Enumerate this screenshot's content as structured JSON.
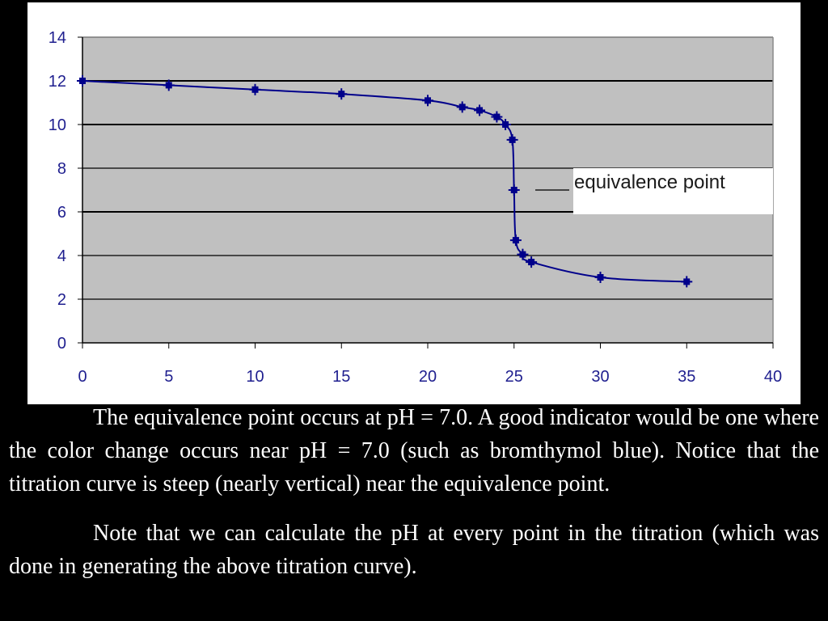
{
  "chart_data": {
    "type": "line",
    "title": "",
    "xlabel": "",
    "ylabel": "",
    "xlim": [
      0,
      40
    ],
    "ylim": [
      0,
      14
    ],
    "xticks": [
      0,
      5,
      10,
      15,
      20,
      25,
      30,
      35,
      40
    ],
    "yticks": [
      0,
      2,
      4,
      6,
      8,
      10,
      12,
      14
    ],
    "grid": true,
    "legend": "none",
    "series": [
      {
        "x": [
          0,
          5,
          10,
          15,
          20,
          22,
          23,
          24,
          24.5,
          24.9,
          25,
          25.1,
          25.5,
          26,
          30,
          35
        ],
        "y": [
          12.0,
          11.8,
          11.6,
          11.4,
          11.1,
          10.8,
          10.65,
          10.35,
          10.0,
          9.3,
          7.0,
          4.7,
          4.05,
          3.7,
          3.0,
          2.8
        ],
        "color": "#00008b"
      }
    ],
    "annotations": [
      {
        "text": "equivalence point",
        "x": 25,
        "y": 7.0
      }
    ],
    "colors": {
      "plot_bg": "#c0c0c0",
      "panel_bg": "#ffffff",
      "grid": "#000000",
      "tick_text": "#1f1f8f"
    }
  },
  "text": {
    "paragraph1": "The equivalence point occurs at pH = 7.0.  A good indicator would be one where the color change occurs near pH = 7.0 (such as bromthymol blue).  Notice that the titration curve is steep (nearly vertical) near the equivalence point.",
    "paragraph2": "Note that we can calculate the pH at every point in the titration (which was done in generating the above titration curve)."
  }
}
